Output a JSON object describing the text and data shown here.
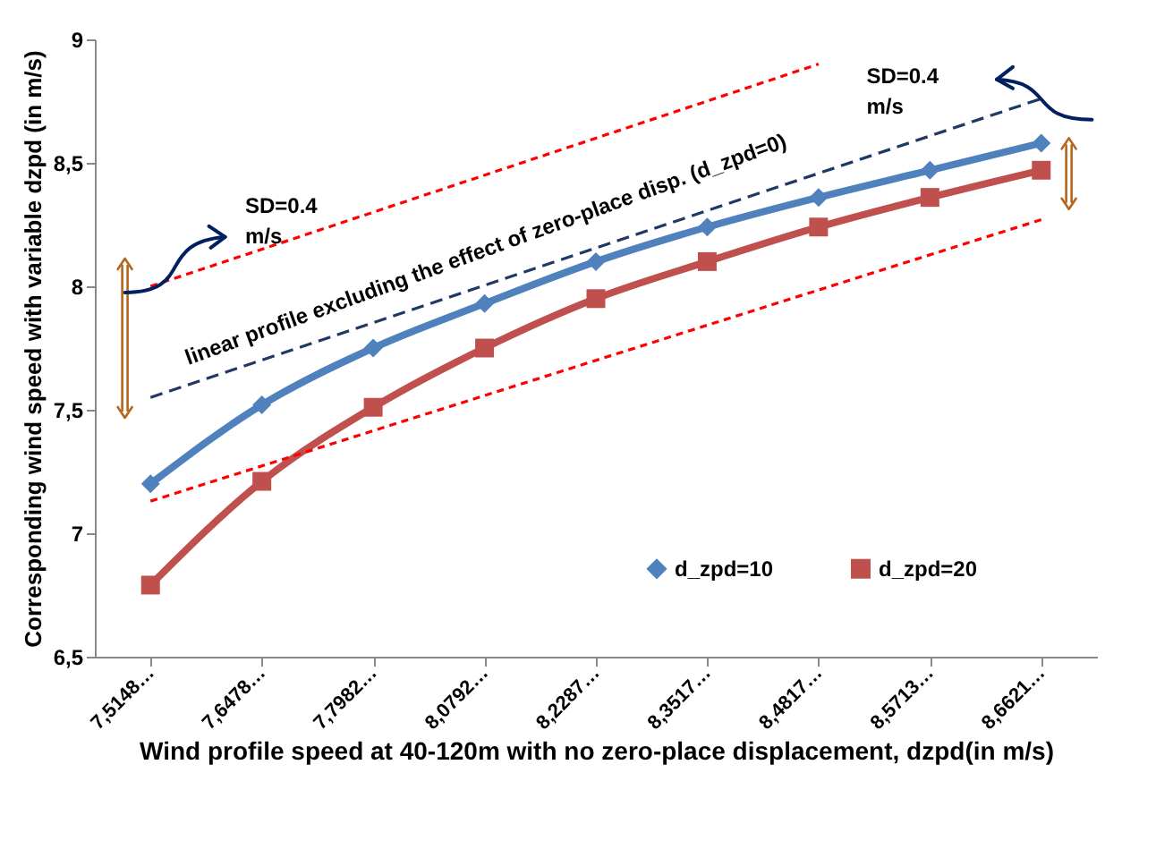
{
  "chart_data": {
    "type": "line",
    "xlabel": "Wind profile speed at 40-120m with no zero-place displacement, dzpd(in m/s)",
    "ylabel": "Corresponding wind speed with variable dzpd (in m/s)",
    "categories": [
      "7,5148…",
      "7,6478…",
      "7,7982…",
      "8,0792…",
      "8,2287…",
      "8,3517…",
      "8,4817…",
      "8,5713…",
      "8,6621…"
    ],
    "series": [
      {
        "name": "d_zpd=10",
        "color": "#4f81bd",
        "marker": "diamond",
        "values": [
          7.2,
          7.52,
          7.75,
          7.93,
          8.1,
          8.24,
          8.36,
          8.47,
          8.58
        ]
      },
      {
        "name": "d_zpd=20",
        "color": "#c0504d",
        "marker": "square",
        "values": [
          6.79,
          7.21,
          7.51,
          7.75,
          7.95,
          8.1,
          8.24,
          8.36,
          8.47
        ]
      },
      {
        "color": "#1f3864",
        "line_style": "dashed",
        "x": [
          "7,5148…",
          "8,6621…"
        ],
        "values": [
          7.55,
          8.76
        ]
      },
      {
        "color": "#ff0000",
        "line_style": "dotted",
        "x": [
          "7,5148…",
          "8,4817…"
        ],
        "values": [
          8.0,
          8.9
        ]
      },
      {
        "color": "#ff0000",
        "line_style": "dotted",
        "x": [
          "7,5148…",
          "8,6621…"
        ],
        "values": [
          7.13,
          8.27
        ]
      }
    ],
    "ylim": [
      6.5,
      9
    ],
    "yticks": [
      {
        "value": 6.5,
        "label": "6,5"
      },
      7,
      {
        "value": 7.5,
        "label": "7,5"
      },
      8,
      {
        "value": 8.5,
        "label": "8,5"
      },
      9
    ],
    "annotations": [
      "SD=0.4\nm/s",
      "SD=0.4\nm/s",
      "linear profile excluding the effect of zero-place disp. (d_zpd=0)"
    ],
    "legend": "bottom right",
    "grid": false
  }
}
